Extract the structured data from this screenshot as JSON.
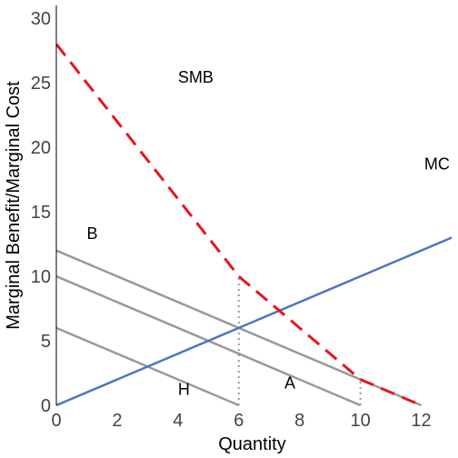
{
  "chart_data": {
    "type": "line",
    "title": "",
    "xlabel": "Quantity",
    "ylabel": "Marginal Benefit/Marginal Cost",
    "xlim": [
      0,
      13
    ],
    "ylim": [
      0,
      31
    ],
    "xticks": [
      "0",
      "2",
      "4",
      "6",
      "8",
      "10",
      "12"
    ],
    "yticks": [
      "0",
      "5",
      "10",
      "15",
      "20",
      "25",
      "30"
    ],
    "grid": false,
    "series": [
      {
        "name": "MC",
        "color": "#4d74bf",
        "style": "solid",
        "x": [
          0,
          13
        ],
        "y": [
          0,
          13
        ]
      },
      {
        "name": "SMB",
        "color": "#e8141c",
        "style": "dashed",
        "x": [
          0,
          6,
          10,
          12
        ],
        "y": [
          28,
          10,
          2,
          0
        ]
      },
      {
        "name": "B",
        "color": "#999999",
        "style": "solid",
        "x": [
          0,
          12
        ],
        "y": [
          12,
          0
        ]
      },
      {
        "name": "A",
        "color": "#999999",
        "style": "solid",
        "x": [
          0,
          10
        ],
        "y": [
          10,
          0
        ]
      },
      {
        "name": "H",
        "color": "#999999",
        "style": "solid",
        "x": [
          0,
          6
        ],
        "y": [
          6,
          0
        ]
      }
    ],
    "reference_lines": [
      {
        "x": 6,
        "y_from": 0,
        "y_to": 10,
        "color": "#999999",
        "style": "dotted"
      },
      {
        "x": 10,
        "y_from": 0,
        "y_to": 2,
        "color": "#999999",
        "style": "dotted"
      }
    ],
    "annotations": [
      {
        "text": "SMB",
        "x": 4.0,
        "y": 25
      },
      {
        "text": "MC",
        "x": 12.1,
        "y": 18.3
      },
      {
        "text": "B",
        "x": 1.0,
        "y": 12.9
      },
      {
        "text": "A",
        "x": 7.5,
        "y": 1.3
      },
      {
        "text": "H",
        "x": 4.0,
        "y": 0.8
      }
    ]
  }
}
